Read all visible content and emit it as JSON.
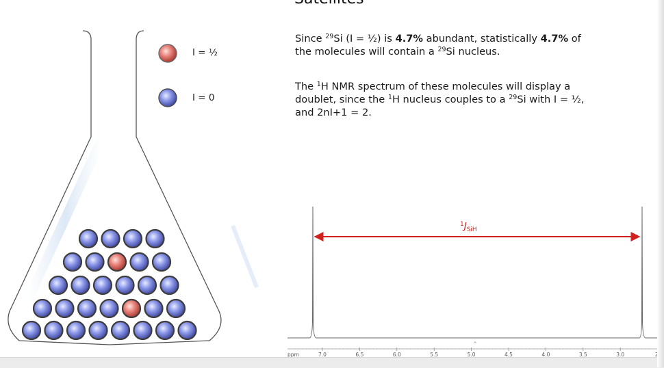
{
  "slide": {
    "title": "Satellites",
    "para1": {
      "t1": "Since ",
      "sup1": "29",
      "t2": "Si (I = ½) is ",
      "b1": "4.7%",
      "t3": " abundant, statistically ",
      "b2": "4.7%",
      "t4": " of the molecules will contain a ",
      "sup2": "29",
      "t5": "Si nucleus."
    },
    "para2": {
      "t1": "The ",
      "sup1": "1",
      "t2": "H NMR spectrum of these molecules will display a doublet, since the ",
      "sup2": "1",
      "t3": "H nucleus couples to a ",
      "sup3": "29",
      "t4": "Si with I = ½, and 2nI+1 = 2."
    }
  },
  "legend": {
    "half_label": "I = ½",
    "zero_label": "I = 0",
    "half_color": "#e8827a",
    "zero_color": "#8a96e8"
  },
  "spectrum": {
    "coupling_label": {
      "sup": "1",
      "main": "J",
      "sub": "SiH"
    },
    "coupling_color": "#d0211d",
    "axis_unit": "ppm",
    "axis_ticks": [
      "7.0",
      "6.5",
      "6.0",
      "5.5",
      "5.0",
      "4.5",
      "4.0",
      "3.5",
      "3.0",
      "2."
    ],
    "center_mark": "^"
  },
  "flask": {
    "molecule_rows": [
      [
        "zero",
        "zero",
        "zero",
        "zero",
        "zero",
        "zero",
        "zero",
        "zero"
      ],
      [
        "zero",
        "zero",
        "zero",
        "zero",
        "half",
        "zero",
        "zero"
      ],
      [
        "zero",
        "zero",
        "zero",
        "zero",
        "zero",
        "zero"
      ],
      [
        "zero",
        "zero",
        "half",
        "zero",
        "zero"
      ],
      [
        "zero",
        "zero",
        "zero",
        "zero"
      ]
    ]
  }
}
